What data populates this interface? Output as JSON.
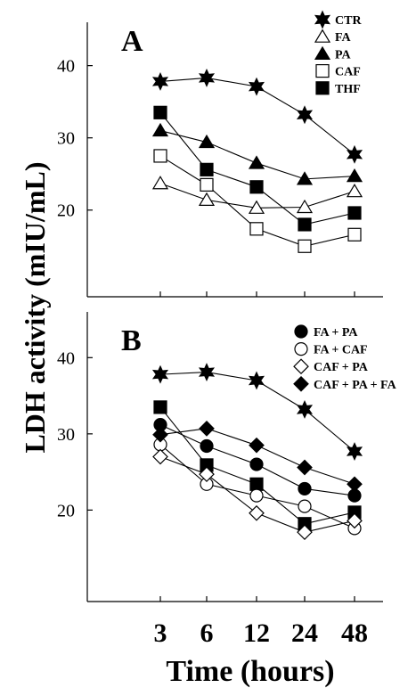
{
  "figure": {
    "ylabel": "LDH activity (mIU/mL)",
    "xlabel": "Time (hours)",
    "xticks": [
      "3",
      "6",
      "12",
      "24",
      "48"
    ]
  },
  "chart_data": [
    {
      "type": "line",
      "panel_label": "A",
      "categories": [
        "3",
        "6",
        "12",
        "24",
        "48"
      ],
      "xlabel": "Time (hours)",
      "ylabel": "LDH activity (mIU/mL)",
      "ylim": [
        8,
        46
      ],
      "yticks": [
        20,
        30,
        40
      ],
      "grid": false,
      "legend_position": "top-right",
      "series": [
        {
          "name": "CTR",
          "marker": "star-filled",
          "values": [
            37.8,
            38.3,
            37.1,
            33.2,
            27.7
          ]
        },
        {
          "name": "FA",
          "marker": "triangle-open",
          "values": [
            23.7,
            21.4,
            20.3,
            20.4,
            22.6
          ]
        },
        {
          "name": "PA",
          "marker": "triangle-filled",
          "values": [
            31.0,
            29.4,
            26.5,
            24.3,
            24.7
          ]
        },
        {
          "name": "CAF",
          "marker": "square-open",
          "values": [
            27.5,
            23.5,
            17.4,
            15.0,
            16.6
          ]
        },
        {
          "name": "THF",
          "marker": "square-filled",
          "values": [
            33.5,
            25.6,
            23.2,
            18.0,
            19.6
          ]
        }
      ]
    },
    {
      "type": "line",
      "panel_label": "B",
      "categories": [
        "3",
        "6",
        "12",
        "24",
        "48"
      ],
      "xlabel": "Time (hours)",
      "ylabel": "LDH activity (mIU/mL)",
      "ylim": [
        8,
        46
      ],
      "yticks": [
        20,
        30,
        40
      ],
      "grid": false,
      "legend_position": "top-right",
      "series": [
        {
          "name": "",
          "marker": "star-filled",
          "values": [
            37.8,
            38.1,
            37.0,
            33.2,
            27.7
          ]
        },
        {
          "name": "",
          "marker": "square-filled",
          "values": [
            33.5,
            25.9,
            23.4,
            18.2,
            19.7
          ]
        },
        {
          "name": "FA + PA",
          "marker": "circle-filled",
          "values": [
            31.2,
            28.4,
            26.0,
            22.8,
            21.9
          ]
        },
        {
          "name": "FA + CAF",
          "marker": "circle-open",
          "values": [
            28.6,
            23.4,
            21.9,
            20.5,
            17.6
          ]
        },
        {
          "name": "CAF + PA",
          "marker": "diamond-open",
          "values": [
            27.0,
            24.7,
            19.6,
            17.1,
            18.6
          ]
        },
        {
          "name": "CAF + PA + FA",
          "marker": "diamond-filled",
          "values": [
            29.9,
            30.7,
            28.5,
            25.6,
            23.4
          ]
        }
      ]
    }
  ]
}
